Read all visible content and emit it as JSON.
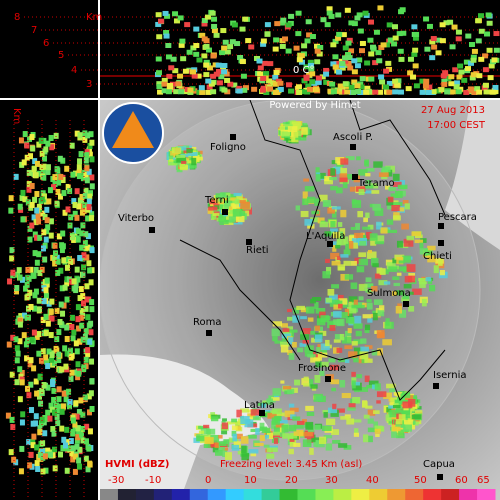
{
  "top_profile": {
    "unit": "Km",
    "levels": [
      8,
      7,
      6,
      5,
      4,
      3
    ],
    "freezing_mark": "0 C°"
  },
  "left_profile": {
    "unit": "Km"
  },
  "map": {
    "credit": "Powered by Himet",
    "date": "27 Aug 2013",
    "time": "17:00 CEST",
    "cities": [
      "Ascoli P.",
      "Foligno",
      "Teramo",
      "Terni",
      "Pescara",
      "Viterbo",
      "L'Aquila",
      "Rieti",
      "Chieti",
      "Sulmona",
      "Roma",
      "Frosinone",
      "Isernia",
      "Latina",
      "Capua"
    ],
    "product": "HVMI (dBZ)",
    "freezing_level": "Freezing level: 3.45 Km (asl)",
    "scale": [
      -30,
      -10,
      0,
      10,
      20,
      30,
      40,
      50,
      60,
      65
    ]
  }
}
